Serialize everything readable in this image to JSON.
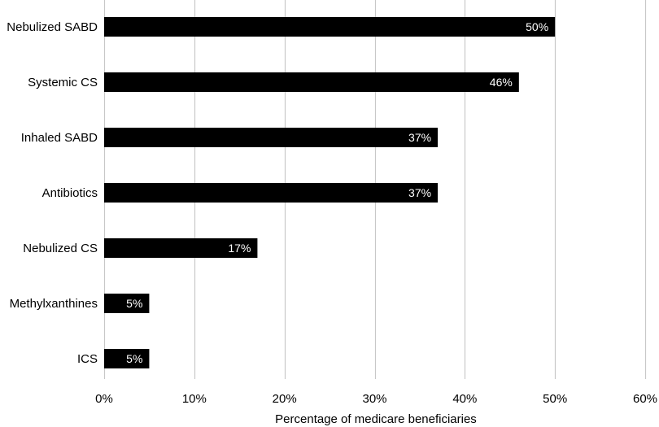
{
  "chart_data": {
    "type": "bar",
    "orientation": "horizontal",
    "categories": [
      "Nebulized SABD",
      "Systemic CS",
      "Inhaled SABD",
      "Antibiotics",
      "Nebulized CS",
      "Methylxanthines",
      "ICS"
    ],
    "values": [
      50,
      46,
      37,
      37,
      17,
      5,
      5
    ],
    "data_labels": [
      "50%",
      "46%",
      "37%",
      "37%",
      "17%",
      "5%",
      "5%"
    ],
    "title": "",
    "xlabel": "Percentage of medicare beneficiaries",
    "ylabel": "",
    "xlim": [
      0,
      60
    ],
    "x_ticks": [
      0,
      10,
      20,
      30,
      40,
      50,
      60
    ],
    "x_tick_labels": [
      "0%",
      "10%",
      "20%",
      "30%",
      "40%",
      "50%",
      "60%"
    ],
    "grid": "vertical",
    "legend": "none",
    "colors": {
      "bar": "#000000",
      "grid": "#c8c8c8",
      "data_label": "#ffffff",
      "text": "#000000"
    }
  }
}
